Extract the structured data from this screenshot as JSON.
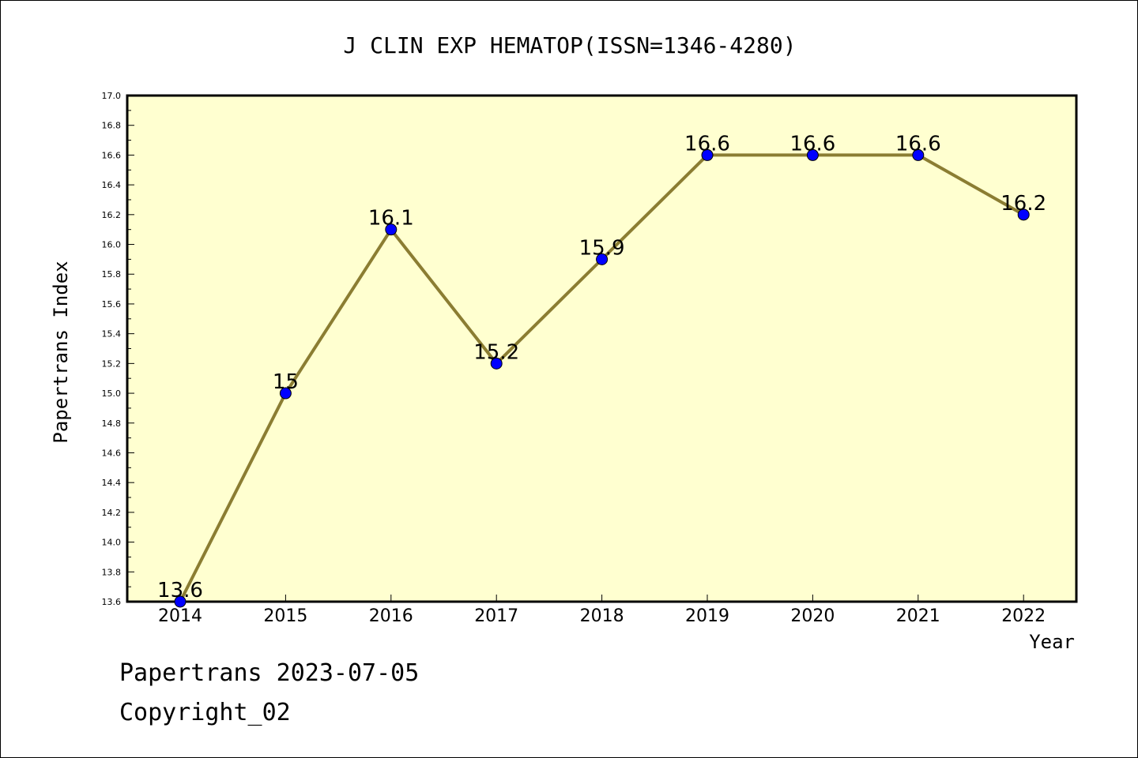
{
  "chart_data": {
    "type": "line",
    "title": "J CLIN EXP HEMATOP(ISSN=1346-4280)",
    "xlabel": "Year",
    "ylabel": "Papertrans Index",
    "categories": [
      "2014",
      "2015",
      "2016",
      "2017",
      "2018",
      "2019",
      "2020",
      "2021",
      "2022"
    ],
    "values": [
      13.6,
      15,
      16.1,
      15.2,
      15.9,
      16.6,
      16.6,
      16.6,
      16.2
    ],
    "data_labels": [
      "13.6",
      "15",
      "16.1",
      "15.2",
      "15.9",
      "16.6",
      "16.6",
      "16.6",
      "16.2"
    ],
    "ylim": [
      13.6,
      17.0
    ],
    "yticks": [
      "13.6",
      "13.8",
      "14.0",
      "14.2",
      "14.4",
      "14.6",
      "14.8",
      "15.0",
      "15.2",
      "15.4",
      "15.6",
      "15.8",
      "16.0",
      "16.2",
      "16.4",
      "16.6",
      "16.8",
      "17.0"
    ],
    "grid": false,
    "colors": {
      "plot_background": "#ffffd0",
      "line": "#8b7d32",
      "marker": "#0000ff"
    }
  },
  "footer": {
    "line1": "Papertrans 2023-07-05",
    "line2": "Copyright_02"
  }
}
